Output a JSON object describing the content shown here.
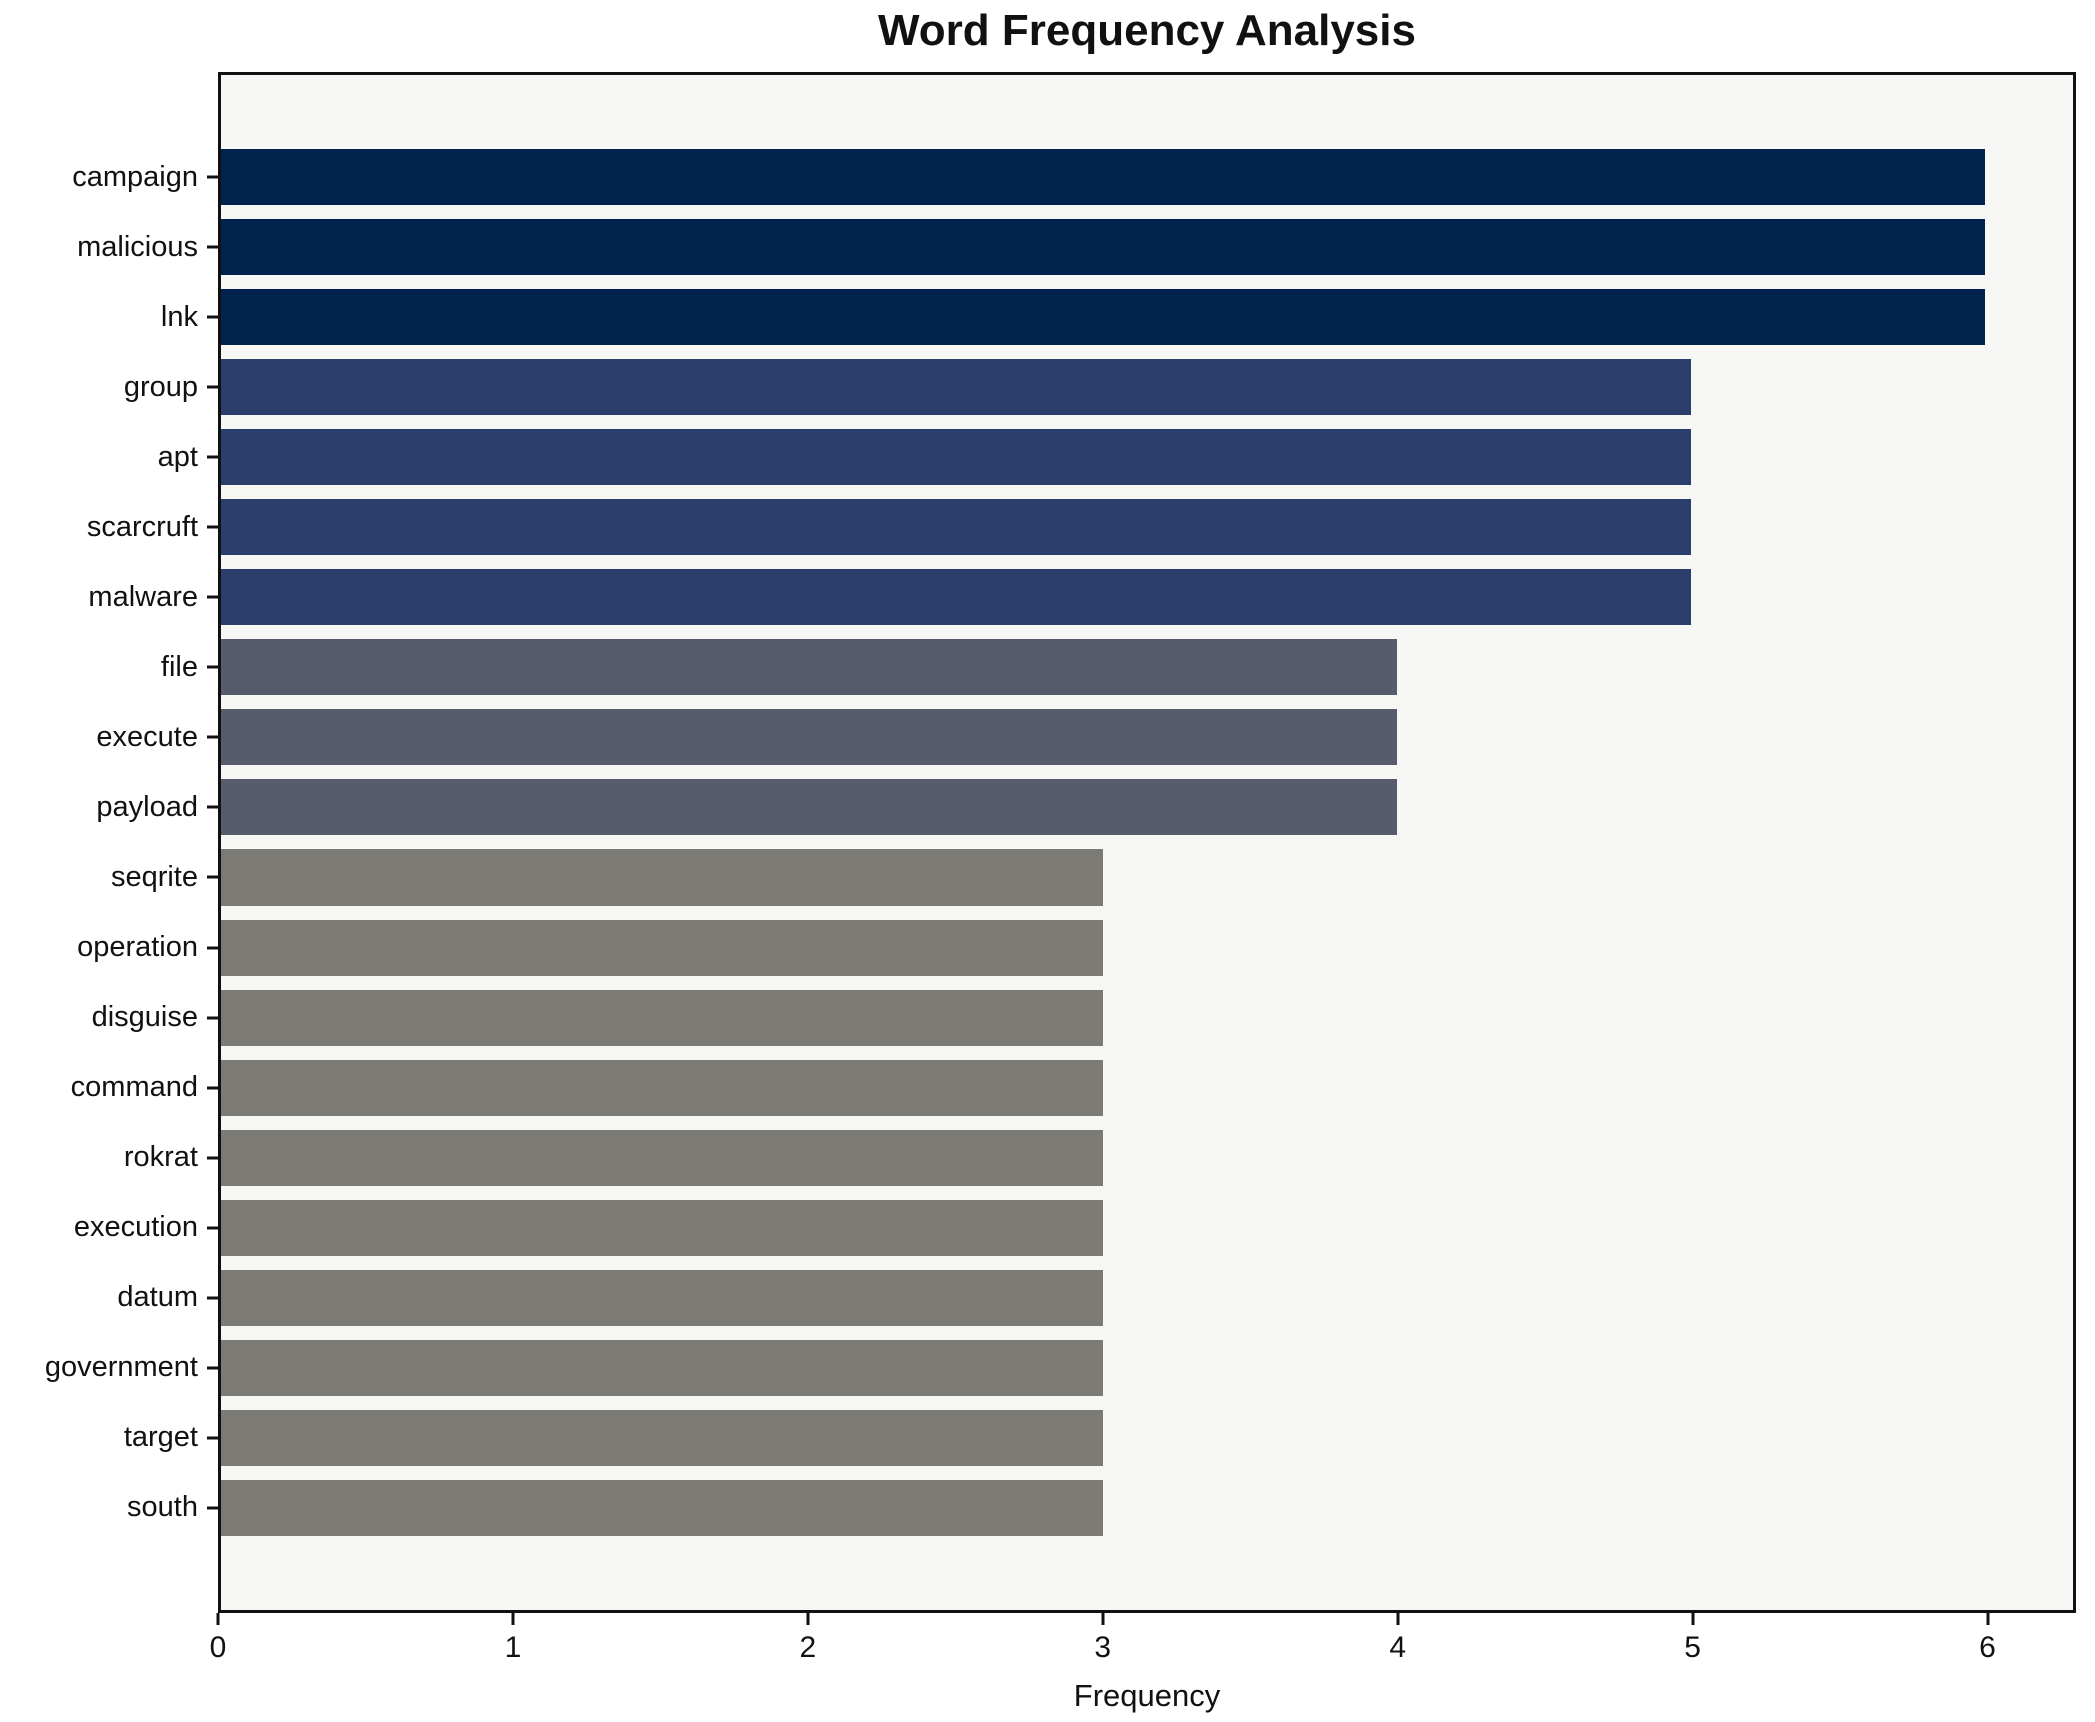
{
  "chart_data": {
    "type": "bar",
    "orientation": "horizontal",
    "title": "Word Frequency Analysis",
    "xlabel": "Frequency",
    "categories": [
      "campaign",
      "malicious",
      "lnk",
      "group",
      "apt",
      "scarcruft",
      "malware",
      "file",
      "execute",
      "payload",
      "seqrite",
      "operation",
      "disguise",
      "command",
      "rokrat",
      "execution",
      "datum",
      "government",
      "target",
      "south"
    ],
    "values": [
      6,
      6,
      6,
      5,
      5,
      5,
      5,
      4,
      4,
      4,
      3,
      3,
      3,
      3,
      3,
      3,
      3,
      3,
      3,
      3
    ],
    "bar_colors": [
      "#02234d",
      "#02234d",
      "#02234d",
      "#2c3f6c",
      "#2c3f6c",
      "#2c3f6c",
      "#2c3f6c",
      "#565c6c",
      "#565c6c",
      "#565c6c",
      "#7b7a74",
      "#7b7a74",
      "#7b7a74",
      "#7b7a74",
      "#7b7a74",
      "#7b7a74",
      "#7b7a74",
      "#7b7a74",
      "#7b7a74",
      "#7b7a74"
    ],
    "xticks": [
      0,
      1,
      2,
      3,
      4,
      5,
      6
    ],
    "xlim": [
      0,
      6.3
    ],
    "grid": "off",
    "legend": "none",
    "plot_background": "#f7f7f5",
    "axis_color": "#111111"
  }
}
